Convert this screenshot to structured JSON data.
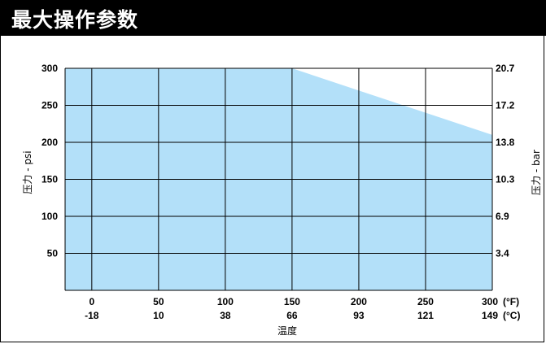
{
  "header": {
    "title": "最大操作参数"
  },
  "chart_data": {
    "type": "area",
    "title": "最大操作参数",
    "xlabel": "温度",
    "ylabel_left": "压力 - psi",
    "ylabel_right": "压力 - bar",
    "x_ticks_f": [
      "0",
      "50",
      "100",
      "150",
      "200",
      "250",
      "300"
    ],
    "x_ticks_c": [
      "-18",
      "10",
      "38",
      "66",
      "93",
      "121",
      "149"
    ],
    "x_unit_f": "(°F)",
    "x_unit_c": "(°C)",
    "y_ticks_left": [
      "50",
      "100",
      "150",
      "200",
      "250",
      "300"
    ],
    "y_ticks_right": [
      "3.4",
      "6.9",
      "10.3",
      "13.8",
      "17.2",
      "20.7"
    ],
    "x": [
      -20,
      150,
      300
    ],
    "y": [
      300,
      300,
      210
    ],
    "xlim": [
      -20,
      300
    ],
    "ylim": [
      0,
      300
    ],
    "grid": true,
    "fill_color": "#b3e0f9"
  }
}
